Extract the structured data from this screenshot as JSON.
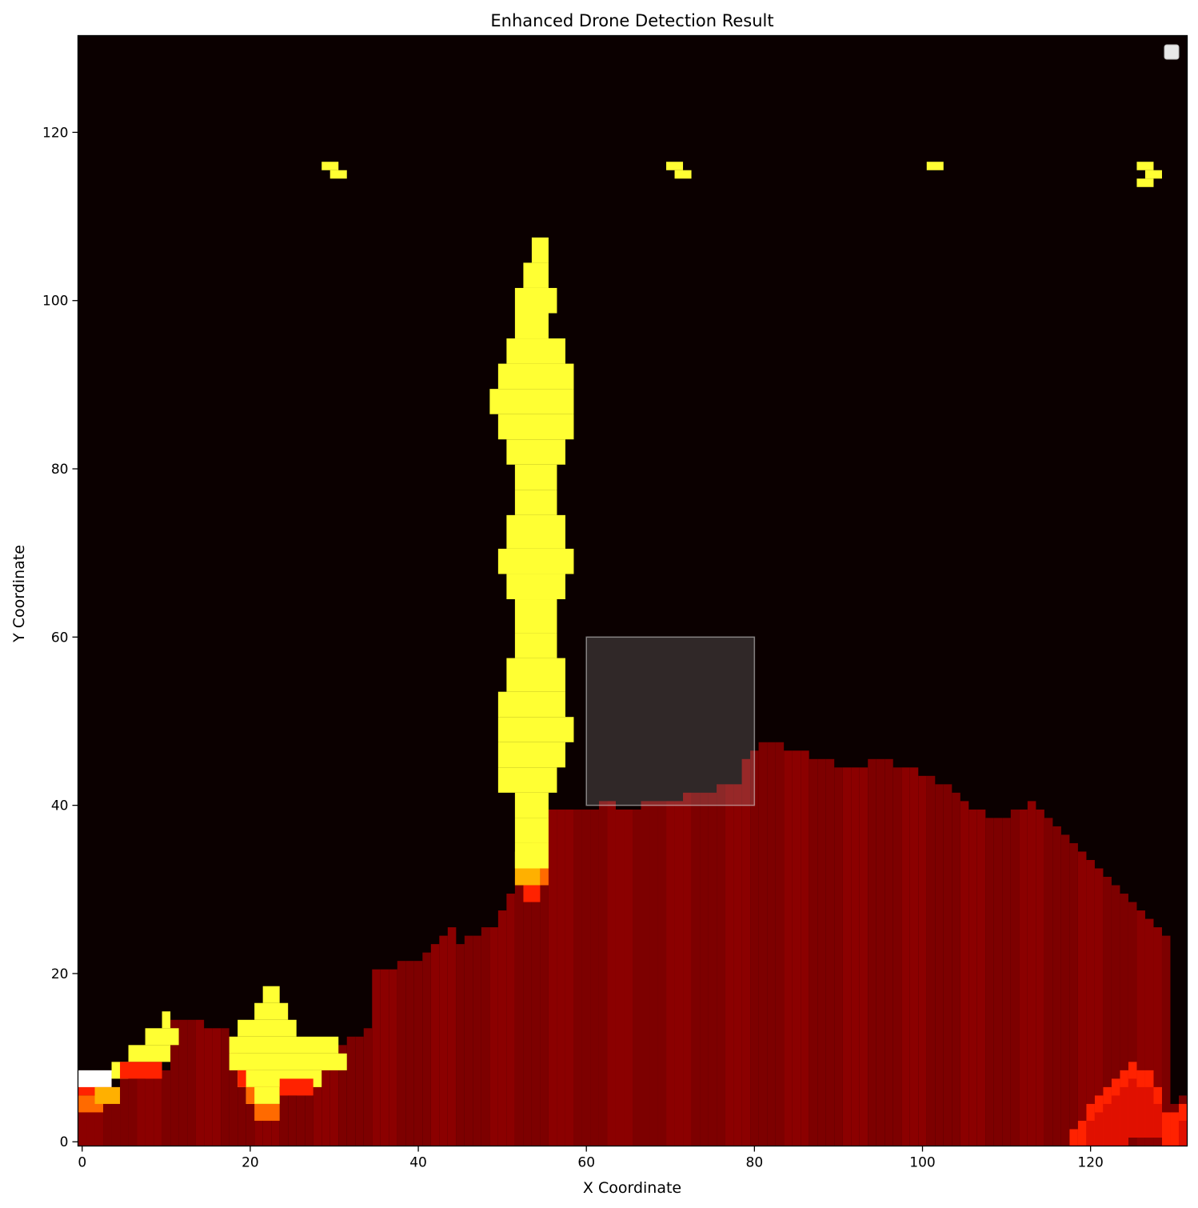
{
  "chart_data": {
    "type": "heatmap",
    "title": "Enhanced Drone Detection Result",
    "xlabel": "X Coordinate",
    "ylabel": "Y Coordinate",
    "xlim": [
      -0.5,
      131.5
    ],
    "ylim": [
      -0.5,
      131.5
    ],
    "xticks": [
      0,
      20,
      40,
      60,
      80,
      100,
      120
    ],
    "yticks": [
      0,
      20,
      40,
      60,
      80,
      100,
      120
    ],
    "colormap": "hot",
    "colors": {
      "background": "#0b0000",
      "ground": "#8b0000",
      "ground_dark": "#7d0000",
      "hot": "#ff2200",
      "warm": "#ff6a00",
      "orange": "#ffb000",
      "yellow": "#ffff33",
      "white": "#ffffff"
    },
    "grid": false,
    "legend": {
      "placement": "top-right",
      "entries": []
    },
    "regions": {
      "ground_profile": [
        [
          0,
          4
        ],
        [
          5,
          7
        ],
        [
          10,
          8
        ],
        [
          11,
          14
        ],
        [
          17,
          13
        ],
        [
          20,
          9
        ],
        [
          25,
          5
        ],
        [
          28,
          8
        ],
        [
          31,
          11
        ],
        [
          34,
          13
        ],
        [
          35,
          20
        ],
        [
          40,
          21
        ],
        [
          42,
          23
        ],
        [
          44,
          25
        ],
        [
          45,
          23
        ],
        [
          47,
          24
        ],
        [
          49,
          25
        ],
        [
          50,
          27
        ],
        [
          51,
          29
        ],
        [
          52,
          31
        ],
        [
          54,
          37
        ],
        [
          56,
          39
        ],
        [
          60,
          39
        ],
        [
          63,
          40
        ],
        [
          64,
          39
        ],
        [
          70,
          40
        ],
        [
          73,
          41
        ],
        [
          78,
          42
        ],
        [
          79,
          45
        ],
        [
          80,
          46
        ],
        [
          82,
          47
        ],
        [
          84,
          46
        ],
        [
          88,
          45
        ],
        [
          90,
          44
        ],
        [
          93,
          44
        ],
        [
          94,
          45
        ],
        [
          98,
          44
        ],
        [
          100,
          43
        ],
        [
          103,
          42
        ],
        [
          105,
          40
        ],
        [
          106,
          39
        ],
        [
          109,
          38
        ],
        [
          112,
          39
        ],
        [
          113,
          40
        ],
        [
          114,
          39
        ],
        [
          116,
          37
        ],
        [
          117,
          36
        ],
        [
          118,
          35
        ],
        [
          119,
          34
        ],
        [
          120,
          33
        ],
        [
          121,
          32
        ],
        [
          122,
          31
        ],
        [
          123,
          30
        ],
        [
          124,
          29
        ],
        [
          126,
          27
        ],
        [
          127,
          26
        ],
        [
          128,
          25
        ],
        [
          129,
          24
        ],
        [
          129,
          20
        ],
        [
          128,
          16
        ],
        [
          127,
          10
        ],
        [
          128,
          3
        ],
        [
          131,
          5
        ]
      ],
      "hot_columns": [
        [
          118,
          1,
          0
        ],
        [
          119,
          2,
          0
        ],
        [
          120,
          4,
          0
        ],
        [
          121,
          5,
          0
        ],
        [
          122,
          6,
          0
        ],
        [
          123,
          7,
          0
        ],
        [
          124,
          8,
          0
        ],
        [
          125,
          9,
          1
        ],
        [
          126,
          8,
          1
        ],
        [
          127,
          8,
          1
        ],
        [
          128,
          6,
          1
        ],
        [
          129,
          3,
          0
        ],
        [
          130,
          3,
          0
        ],
        [
          131,
          4,
          0
        ]
      ],
      "plume": [
        [
          107,
          54,
          55
        ],
        [
          104,
          53,
          55
        ],
        [
          101,
          52,
          56
        ],
        [
          98,
          52,
          55
        ],
        [
          95,
          51,
          57
        ],
        [
          92,
          50,
          58
        ],
        [
          89,
          49,
          58
        ],
        [
          86,
          50,
          58
        ],
        [
          83,
          51,
          57
        ],
        [
          80,
          52,
          56
        ],
        [
          77,
          52,
          56
        ],
        [
          74,
          51,
          57
        ],
        [
          70,
          50,
          58
        ],
        [
          67,
          51,
          57
        ],
        [
          64,
          52,
          56
        ],
        [
          60,
          52,
          56
        ],
        [
          57,
          51,
          57
        ],
        [
          53,
          50,
          57
        ],
        [
          50,
          50,
          58
        ],
        [
          47,
          50,
          57
        ],
        [
          44,
          50,
          56
        ],
        [
          41,
          52,
          55
        ],
        [
          38,
          52,
          55
        ],
        [
          35,
          52,
          55
        ]
      ],
      "plume_base": [
        [
          33,
          52,
          54,
          "#ffff33"
        ],
        [
          31,
          52,
          54,
          "#ffb000"
        ],
        [
          29,
          53,
          54,
          "#ff2200"
        ],
        [
          31,
          55,
          55,
          "#ff6a00"
        ]
      ],
      "peaks": [
        [
          18,
          22,
          23
        ],
        [
          16,
          21,
          24
        ],
        [
          14,
          19,
          25
        ],
        [
          12,
          18,
          30
        ],
        [
          10,
          18,
          31
        ],
        [
          8,
          19,
          28
        ],
        [
          6,
          20,
          23
        ],
        [
          15,
          10,
          10
        ],
        [
          13,
          8,
          11
        ],
        [
          11,
          6,
          10
        ],
        [
          9,
          4,
          5
        ]
      ],
      "peak_edges": [
        [
          8,
          19,
          19,
          "#ff2200"
        ],
        [
          6,
          20,
          20,
          "#ff6a00"
        ],
        [
          4,
          21,
          23,
          "#ff6a00"
        ],
        [
          7,
          24,
          27,
          "#ff2200"
        ],
        [
          9,
          5,
          9,
          "#ff2200"
        ],
        [
          7,
          0,
          3,
          "#ff2200"
        ],
        [
          5,
          0,
          2,
          "#ff6a00"
        ],
        [
          8,
          0,
          3,
          "#ffffff"
        ],
        [
          6,
          2,
          4,
          "#ffb000"
        ]
      ],
      "hotspots": [
        [
          29,
          116,
          "#ffff33"
        ],
        [
          30,
          115,
          "#ffff33"
        ],
        [
          70,
          116,
          "#ffff33"
        ],
        [
          71,
          115,
          "#ffff33"
        ],
        [
          101,
          116,
          "#ffff33"
        ],
        [
          126,
          116,
          "#ffff33"
        ],
        [
          127,
          115,
          "#ffff33"
        ],
        [
          126,
          114,
          "#ffff33"
        ]
      ],
      "zones": [
        [
          60,
          40,
          20,
          20
        ]
      ]
    }
  }
}
